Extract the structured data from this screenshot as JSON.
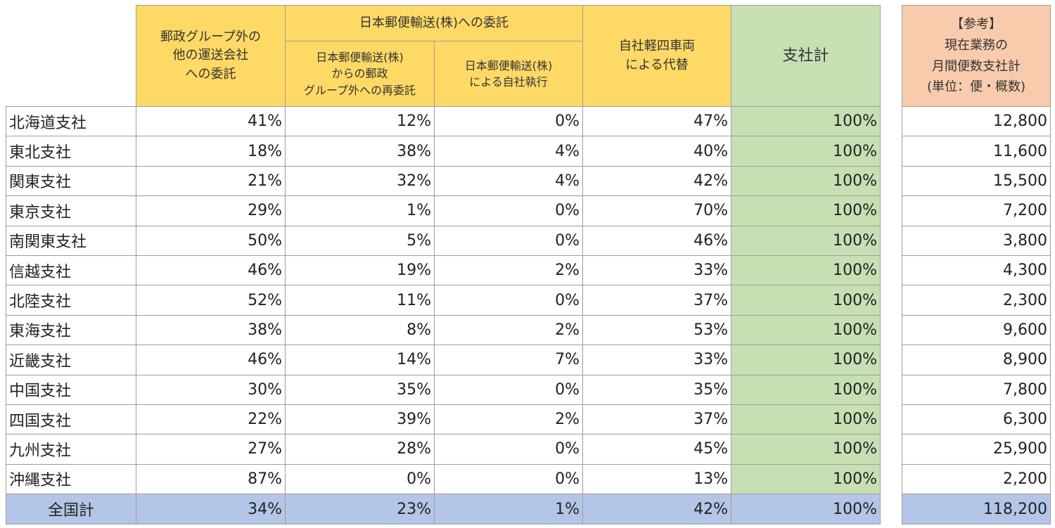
{
  "headers": {
    "col1": "郵政グループ外の\n他の運送会社\nへの委託",
    "group": "日本郵便輸送(株)への委託",
    "col2": "日本郵便輸送(株)\nからの郵政\nグループ外への再委託",
    "col3": "日本郵便輸送(株)\nによる自社執行",
    "col4": "自社軽四車両\nによる代替",
    "col5": "支社計",
    "ref": "【参考】\n現在業務の\n月間便数支社計\n(単位：便・概数)"
  },
  "rows": [
    {
      "name": "北海道支社",
      "c1": "41%",
      "c2": "12%",
      "c3": "0%",
      "c4": "47%",
      "total": "100%",
      "ref": "12,800"
    },
    {
      "name": "東北支社",
      "c1": "18%",
      "c2": "38%",
      "c3": "4%",
      "c4": "40%",
      "total": "100%",
      "ref": "11,600"
    },
    {
      "name": "関東支社",
      "c1": "21%",
      "c2": "32%",
      "c3": "4%",
      "c4": "42%",
      "total": "100%",
      "ref": "15,500"
    },
    {
      "name": "東京支社",
      "c1": "29%",
      "c2": "1%",
      "c3": "0%",
      "c4": "70%",
      "total": "100%",
      "ref": "7,200"
    },
    {
      "name": "南関東支社",
      "c1": "50%",
      "c2": "5%",
      "c3": "0%",
      "c4": "46%",
      "total": "100%",
      "ref": "3,800"
    },
    {
      "name": "信越支社",
      "c1": "46%",
      "c2": "19%",
      "c3": "2%",
      "c4": "33%",
      "total": "100%",
      "ref": "4,300"
    },
    {
      "name": "北陸支社",
      "c1": "52%",
      "c2": "11%",
      "c3": "0%",
      "c4": "37%",
      "total": "100%",
      "ref": "2,300"
    },
    {
      "name": "東海支社",
      "c1": "38%",
      "c2": "8%",
      "c3": "2%",
      "c4": "53%",
      "total": "100%",
      "ref": "9,600"
    },
    {
      "name": "近畿支社",
      "c1": "46%",
      "c2": "14%",
      "c3": "7%",
      "c4": "33%",
      "total": "100%",
      "ref": "8,900"
    },
    {
      "name": "中国支社",
      "c1": "30%",
      "c2": "35%",
      "c3": "0%",
      "c4": "35%",
      "total": "100%",
      "ref": "7,800"
    },
    {
      "name": "四国支社",
      "c1": "22%",
      "c2": "39%",
      "c3": "2%",
      "c4": "37%",
      "total": "100%",
      "ref": "6,300"
    },
    {
      "name": "九州支社",
      "c1": "27%",
      "c2": "28%",
      "c3": "0%",
      "c4": "45%",
      "total": "100%",
      "ref": "25,900"
    },
    {
      "name": "沖縄支社",
      "c1": "87%",
      "c2": "0%",
      "c3": "0%",
      "c4": "13%",
      "total": "100%",
      "ref": "2,200"
    }
  ],
  "total_row": {
    "name": "全国計",
    "c1": "34%",
    "c2": "23%",
    "c3": "1%",
    "c4": "42%",
    "total": "100%",
    "ref": "118,200"
  },
  "colors": {
    "header": "#ffd966",
    "total_col": "#c6e0b4",
    "ref_header": "#f8cbad",
    "total_row": "#b4c6e7"
  }
}
